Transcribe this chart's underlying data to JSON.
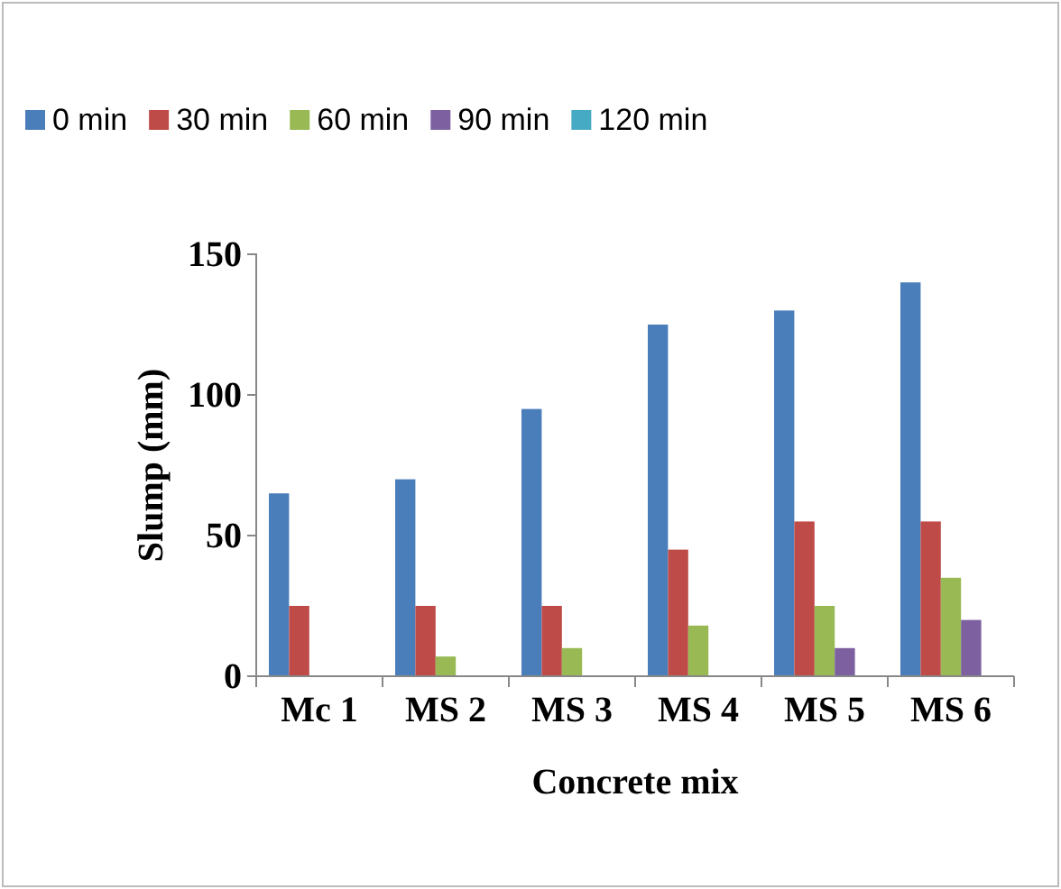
{
  "chart_data": {
    "type": "bar",
    "xlabel": "Concrete mix",
    "ylabel": "Slump (mm)",
    "categories": [
      "Mc 1",
      "MS 2",
      "MS 3",
      "MS 4",
      "MS 5",
      "MS 6"
    ],
    "series": [
      {
        "name": "0 min",
        "color": "#4a7ebb",
        "values": [
          65,
          70,
          95,
          125,
          130,
          140
        ]
      },
      {
        "name": "30 min",
        "color": "#be4b48",
        "values": [
          25,
          25,
          25,
          45,
          55,
          55
        ]
      },
      {
        "name": "60 min",
        "color": "#98b954",
        "values": [
          0,
          7,
          10,
          18,
          25,
          35
        ]
      },
      {
        "name": "90 min",
        "color": "#7d60a0",
        "values": [
          0,
          0,
          0,
          0,
          10,
          20
        ]
      },
      {
        "name": "120 min",
        "color": "#46aac5",
        "values": [
          0,
          0,
          0,
          0,
          0,
          0
        ]
      }
    ],
    "ylim": [
      0,
      150
    ],
    "yticks": [
      0,
      50,
      100,
      150
    ],
    "grid": false,
    "legend": "top"
  }
}
